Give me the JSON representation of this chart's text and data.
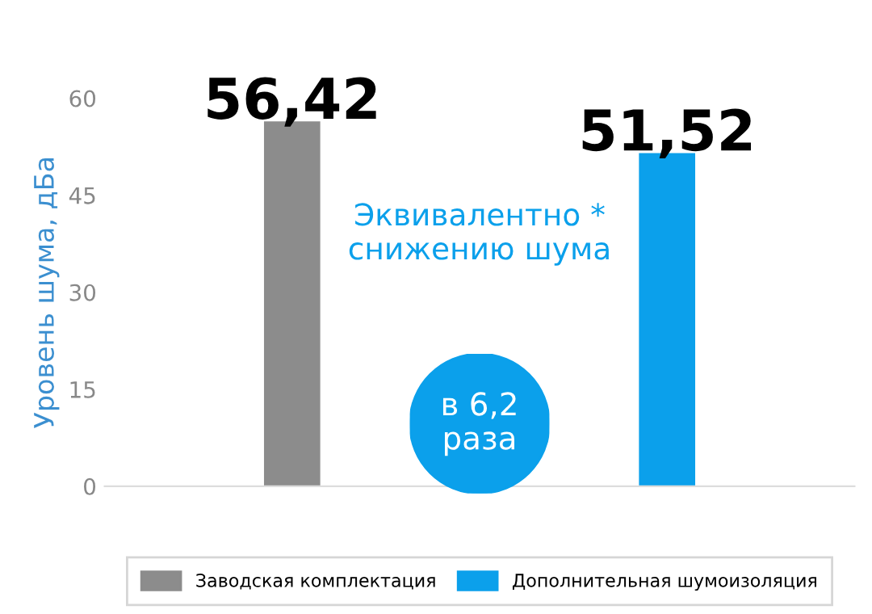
{
  "chart_data": {
    "type": "bar",
    "ylabel": "Уровень шума, дБа",
    "categories": [
      null,
      null
    ],
    "series": [
      {
        "name": "Заводская комплектация",
        "color": "#8c8c8c",
        "values": [
          56.42,
          null
        ],
        "value_labels": [
          "56,42",
          null
        ]
      },
      {
        "name": "Дополнительная шумоизоляция",
        "color": "#0ba0eb",
        "values": [
          null,
          51.52
        ],
        "value_labels": [
          null,
          "51,52"
        ]
      }
    ],
    "ylim": [
      0,
      60
    ],
    "yticks": [
      0,
      15,
      30,
      45,
      60
    ],
    "grid": false,
    "legend": "bottom",
    "annotations": [
      "Эквивалентно *\nснижению шума",
      "в 6,2\nраза"
    ]
  }
}
